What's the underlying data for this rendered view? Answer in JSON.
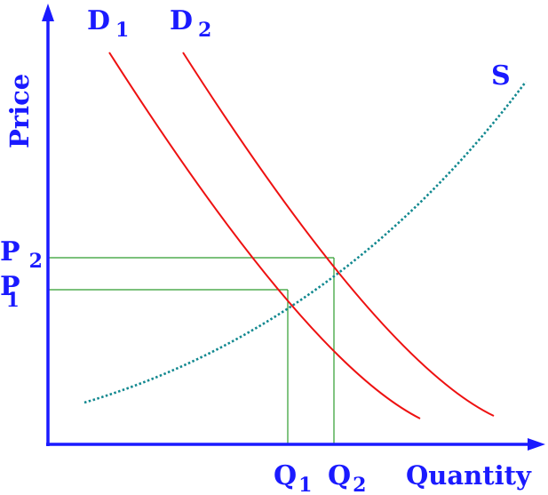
{
  "axes": {
    "y_title": "Price",
    "x_title": "Quantity"
  },
  "curves": {
    "demand_1": {
      "letter": "D",
      "subscript": "1"
    },
    "demand_2": {
      "letter": "D",
      "subscript": "2"
    },
    "supply": {
      "letter": "S"
    }
  },
  "price_levels": [
    {
      "letter": "P",
      "subscript": "2"
    },
    {
      "letter": "P",
      "subscript": "1"
    }
  ],
  "quantity_levels": [
    {
      "letter": "Q",
      "subscript": "1"
    },
    {
      "letter": "Q",
      "subscript": "2"
    }
  ],
  "colors": {
    "axes": "#1a1aff",
    "labels": "#1a1aff",
    "demand": "#ee1111",
    "supply": "#11888f",
    "guides": "#2e9c2e"
  }
}
